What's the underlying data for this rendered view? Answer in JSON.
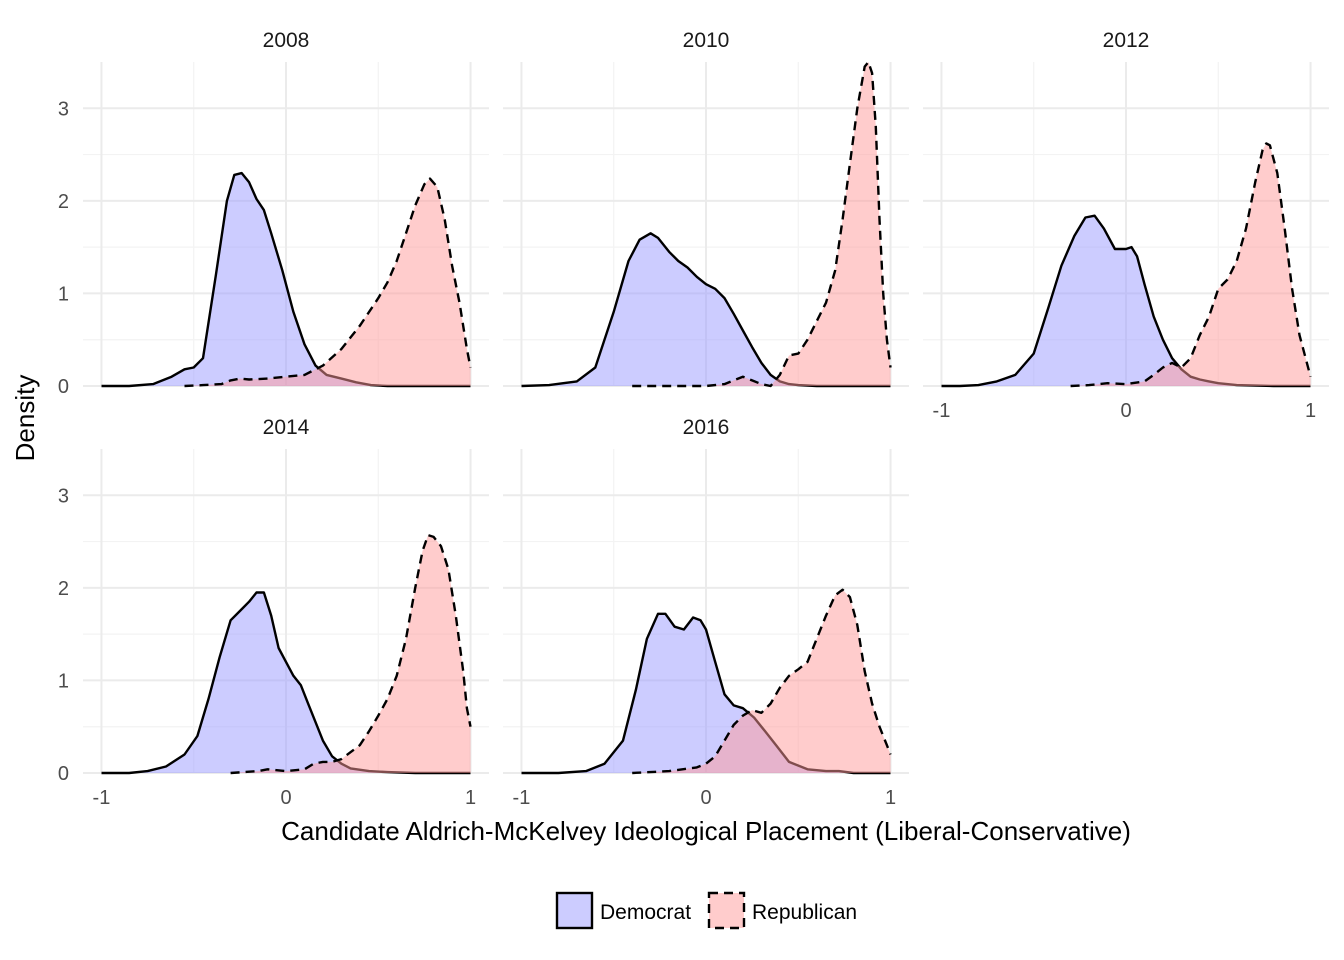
{
  "chart_data": {
    "type": "area",
    "xlabel": "Candidate Aldrich-McKelvey Ideological Placement (Liberal-Conservative)",
    "ylabel": "Density",
    "xlim": [
      -1.1,
      1.1
    ],
    "ylim": [
      0,
      3.5
    ],
    "x_ticks": [
      -1,
      0,
      1
    ],
    "x_tick_labels": [
      "-1",
      "0",
      "1"
    ],
    "y_ticks": [
      0,
      1,
      2,
      3
    ],
    "y_tick_labels": [
      "0",
      "1",
      "2",
      "3"
    ],
    "grid": true,
    "legend": {
      "position": "bottom",
      "entries": [
        {
          "label": "Democrat",
          "fill": "#ccccff",
          "line": "solid"
        },
        {
          "label": "Republican",
          "fill": "#ffcccc",
          "line": "dashed"
        }
      ]
    },
    "panels": [
      {
        "title": "2008",
        "series": [
          {
            "name": "Democrat",
            "x": [
              -1.0,
              -0.85,
              -0.72,
              -0.62,
              -0.55,
              -0.5,
              -0.45,
              -0.38,
              -0.32,
              -0.28,
              -0.24,
              -0.2,
              -0.16,
              -0.12,
              -0.08,
              -0.02,
              0.04,
              0.1,
              0.16,
              0.22,
              0.3,
              0.38,
              0.46,
              0.55,
              0.65,
              0.75,
              0.85,
              1.0
            ],
            "y": [
              0,
              0.0,
              0.02,
              0.1,
              0.18,
              0.2,
              0.3,
              1.2,
              2.0,
              2.28,
              2.3,
              2.2,
              2.02,
              1.9,
              1.65,
              1.25,
              0.8,
              0.45,
              0.22,
              0.12,
              0.08,
              0.04,
              0.01,
              0,
              0,
              0,
              0,
              0
            ]
          },
          {
            "name": "Republican",
            "x": [
              -0.55,
              -0.45,
              -0.35,
              -0.3,
              -0.25,
              -0.2,
              -0.1,
              0.0,
              0.1,
              0.2,
              0.3,
              0.4,
              0.5,
              0.55,
              0.6,
              0.65,
              0.7,
              0.75,
              0.78,
              0.82,
              0.86,
              0.9,
              0.94,
              0.98,
              1.0
            ],
            "y": [
              0,
              0.01,
              0.02,
              0.06,
              0.08,
              0.07,
              0.08,
              0.1,
              0.12,
              0.22,
              0.4,
              0.65,
              0.95,
              1.12,
              1.35,
              1.65,
              1.95,
              2.18,
              2.24,
              2.15,
              1.8,
              1.3,
              0.9,
              0.4,
              0.2
            ]
          }
        ]
      },
      {
        "title": "2010",
        "series": [
          {
            "name": "Democrat",
            "x": [
              -1.0,
              -0.85,
              -0.7,
              -0.6,
              -0.5,
              -0.42,
              -0.36,
              -0.3,
              -0.26,
              -0.2,
              -0.15,
              -0.1,
              -0.05,
              0.0,
              0.05,
              0.1,
              0.15,
              0.2,
              0.25,
              0.3,
              0.35,
              0.4,
              0.45,
              0.5,
              0.6,
              0.8,
              1.0
            ],
            "y": [
              0,
              0.01,
              0.05,
              0.2,
              0.8,
              1.35,
              1.58,
              1.65,
              1.6,
              1.45,
              1.35,
              1.28,
              1.18,
              1.1,
              1.05,
              0.95,
              0.78,
              0.6,
              0.42,
              0.25,
              0.12,
              0.05,
              0.02,
              0.01,
              0,
              0,
              0
            ]
          },
          {
            "name": "Republican",
            "x": [
              -0.4,
              -0.2,
              0.0,
              0.1,
              0.15,
              0.2,
              0.25,
              0.3,
              0.35,
              0.4,
              0.45,
              0.5,
              0.55,
              0.6,
              0.65,
              0.7,
              0.74,
              0.78,
              0.82,
              0.86,
              0.88,
              0.9,
              0.92,
              0.94,
              0.96,
              0.98,
              1.0
            ],
            "y": [
              0,
              0.0,
              0.0,
              0.02,
              0.06,
              0.1,
              0.06,
              0.02,
              0.0,
              0.12,
              0.33,
              0.35,
              0.5,
              0.7,
              0.9,
              1.25,
              1.8,
              2.4,
              3.0,
              3.45,
              3.5,
              3.38,
              2.8,
              1.8,
              1.0,
              0.5,
              0.2
            ]
          }
        ]
      },
      {
        "title": "2012",
        "series": [
          {
            "name": "Democrat",
            "x": [
              -1.0,
              -0.9,
              -0.8,
              -0.7,
              -0.6,
              -0.5,
              -0.42,
              -0.35,
              -0.28,
              -0.22,
              -0.17,
              -0.12,
              -0.06,
              0.0,
              0.03,
              0.06,
              0.1,
              0.15,
              0.2,
              0.25,
              0.3,
              0.35,
              0.4,
              0.45,
              0.5,
              0.6,
              0.8,
              1.0
            ],
            "y": [
              0,
              0,
              0.01,
              0.05,
              0.12,
              0.35,
              0.85,
              1.3,
              1.62,
              1.82,
              1.84,
              1.7,
              1.48,
              1.48,
              1.5,
              1.4,
              1.1,
              0.75,
              0.5,
              0.3,
              0.18,
              0.1,
              0.07,
              0.05,
              0.03,
              0.01,
              0,
              0
            ]
          },
          {
            "name": "Republican",
            "x": [
              -0.3,
              -0.2,
              -0.1,
              0.0,
              0.1,
              0.15,
              0.2,
              0.25,
              0.3,
              0.35,
              0.4,
              0.45,
              0.5,
              0.55,
              0.6,
              0.65,
              0.7,
              0.74,
              0.76,
              0.78,
              0.82,
              0.86,
              0.9,
              0.94,
              0.98,
              1.0
            ],
            "y": [
              0,
              0.01,
              0.03,
              0.02,
              0.05,
              0.12,
              0.2,
              0.25,
              0.2,
              0.3,
              0.55,
              0.75,
              1.05,
              1.15,
              1.35,
              1.7,
              2.2,
              2.55,
              2.62,
              2.6,
              2.3,
              1.7,
              1.05,
              0.55,
              0.25,
              0.1
            ]
          }
        ]
      },
      {
        "title": "2014",
        "series": [
          {
            "name": "Democrat",
            "x": [
              -1.0,
              -0.85,
              -0.75,
              -0.65,
              -0.55,
              -0.48,
              -0.42,
              -0.36,
              -0.3,
              -0.25,
              -0.2,
              -0.16,
              -0.12,
              -0.08,
              -0.04,
              0.0,
              0.04,
              0.08,
              0.12,
              0.16,
              0.2,
              0.25,
              0.3,
              0.35,
              0.45,
              0.55,
              0.7,
              1.0
            ],
            "y": [
              0,
              0.0,
              0.02,
              0.07,
              0.2,
              0.4,
              0.8,
              1.25,
              1.65,
              1.75,
              1.85,
              1.95,
              1.95,
              1.7,
              1.35,
              1.2,
              1.05,
              0.95,
              0.75,
              0.55,
              0.35,
              0.18,
              0.1,
              0.05,
              0.02,
              0.01,
              0,
              0
            ]
          },
          {
            "name": "Republican",
            "x": [
              -0.3,
              -0.15,
              -0.1,
              0.0,
              0.1,
              0.15,
              0.2,
              0.25,
              0.3,
              0.4,
              0.45,
              0.5,
              0.55,
              0.6,
              0.65,
              0.7,
              0.74,
              0.77,
              0.8,
              0.84,
              0.88,
              0.92,
              0.96,
              0.98,
              1.0
            ],
            "y": [
              0,
              0.02,
              0.04,
              0.02,
              0.04,
              0.1,
              0.12,
              0.12,
              0.15,
              0.3,
              0.45,
              0.62,
              0.8,
              1.05,
              1.45,
              2.0,
              2.4,
              2.57,
              2.55,
              2.45,
              2.2,
              1.7,
              1.1,
              0.7,
              0.5
            ]
          }
        ]
      },
      {
        "title": "2016",
        "series": [
          {
            "name": "Democrat",
            "x": [
              -1.0,
              -0.8,
              -0.65,
              -0.55,
              -0.45,
              -0.38,
              -0.32,
              -0.26,
              -0.22,
              -0.17,
              -0.12,
              -0.07,
              -0.03,
              0.0,
              0.05,
              0.1,
              0.15,
              0.2,
              0.26,
              0.32,
              0.38,
              0.45,
              0.55,
              0.65,
              0.72,
              0.8,
              1.0
            ],
            "y": [
              0,
              0.0,
              0.02,
              0.1,
              0.35,
              0.9,
              1.45,
              1.72,
              1.72,
              1.58,
              1.55,
              1.68,
              1.65,
              1.55,
              1.2,
              0.85,
              0.73,
              0.7,
              0.6,
              0.45,
              0.3,
              0.12,
              0.04,
              0.02,
              0.02,
              0,
              0
            ]
          },
          {
            "name": "Republican",
            "x": [
              -0.4,
              -0.2,
              -0.05,
              0.0,
              0.05,
              0.1,
              0.15,
              0.2,
              0.25,
              0.3,
              0.35,
              0.4,
              0.45,
              0.5,
              0.55,
              0.6,
              0.65,
              0.7,
              0.74,
              0.78,
              0.82,
              0.86,
              0.9,
              0.94,
              0.98,
              1.0
            ],
            "y": [
              0,
              0.02,
              0.06,
              0.1,
              0.18,
              0.35,
              0.52,
              0.62,
              0.68,
              0.65,
              0.75,
              0.92,
              1.05,
              1.12,
              1.2,
              1.45,
              1.7,
              1.92,
              1.98,
              1.9,
              1.6,
              1.1,
              0.75,
              0.5,
              0.3,
              0.2
            ]
          }
        ]
      }
    ]
  }
}
